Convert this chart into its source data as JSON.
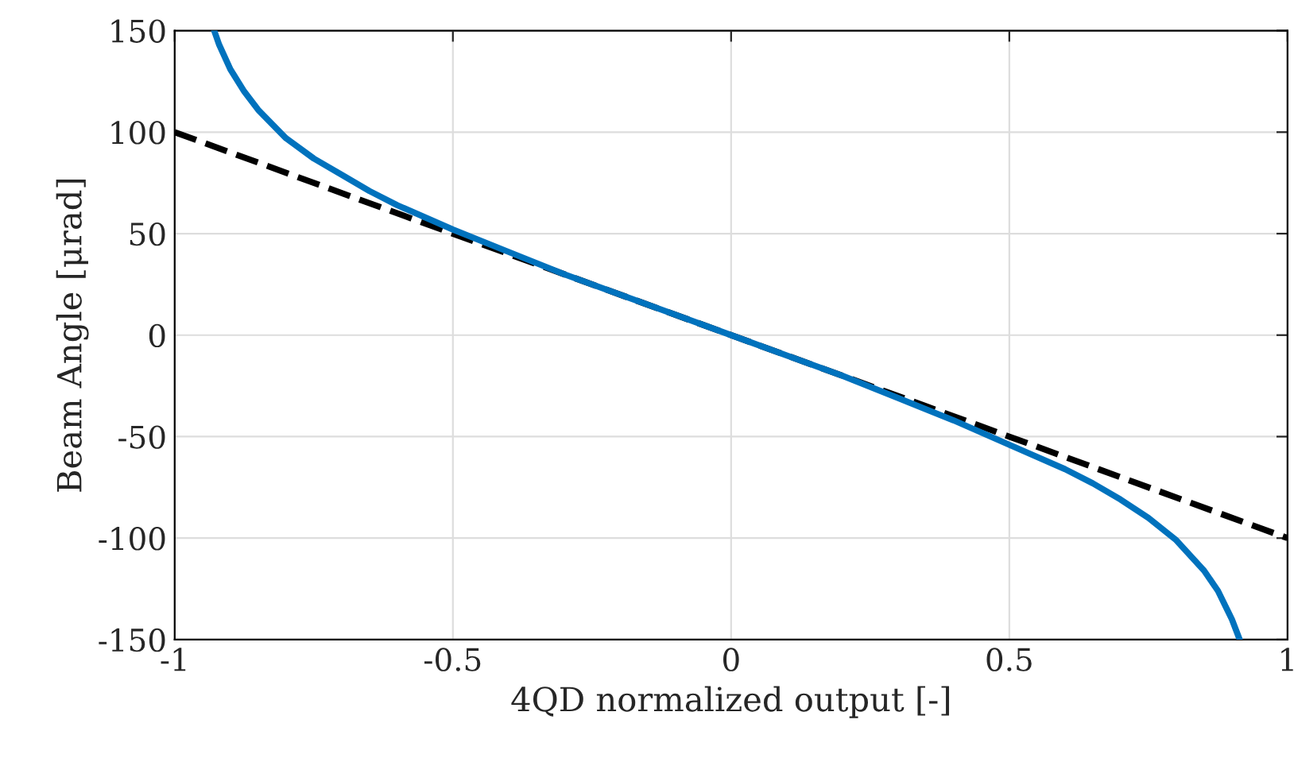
{
  "chart_data": {
    "type": "line",
    "xlabel": "4QD normalized output [-]",
    "ylabel": "Beam Angle [μrad]",
    "xlim": [
      -1,
      1
    ],
    "xticks": [
      -1,
      -0.5,
      0,
      0.5,
      1
    ],
    "ylim": [
      -150,
      150
    ],
    "yticks": [
      -150,
      -100,
      -50,
      0,
      50,
      100,
      150
    ],
    "grid": true,
    "series": [
      {
        "color": "#0072bd",
        "line_style": "solid",
        "x": [
          -0.929,
          -0.92,
          -0.9,
          -0.875,
          -0.85,
          -0.8,
          -0.75,
          -0.7,
          -0.65,
          -0.6,
          -0.5,
          -0.4,
          -0.3,
          -0.2,
          -0.1,
          0,
          0.1,
          0.2,
          0.3,
          0.4,
          0.5,
          0.6,
          0.65,
          0.7,
          0.75,
          0.8,
          0.85,
          0.875,
          0.9,
          0.914
        ],
        "values": [
          150,
          143,
          131,
          120,
          111,
          97,
          87,
          79,
          71,
          64,
          52,
          41,
          30,
          20,
          10,
          0,
          -10,
          -20,
          -31,
          -42,
          -54,
          -66,
          -73,
          -81,
          -90,
          -101,
          -116,
          -126,
          -140,
          -150
        ]
      },
      {
        "color": "#000000",
        "line_style": "dashed",
        "x": [
          -1,
          1
        ],
        "values": [
          100,
          -100
        ]
      }
    ]
  }
}
